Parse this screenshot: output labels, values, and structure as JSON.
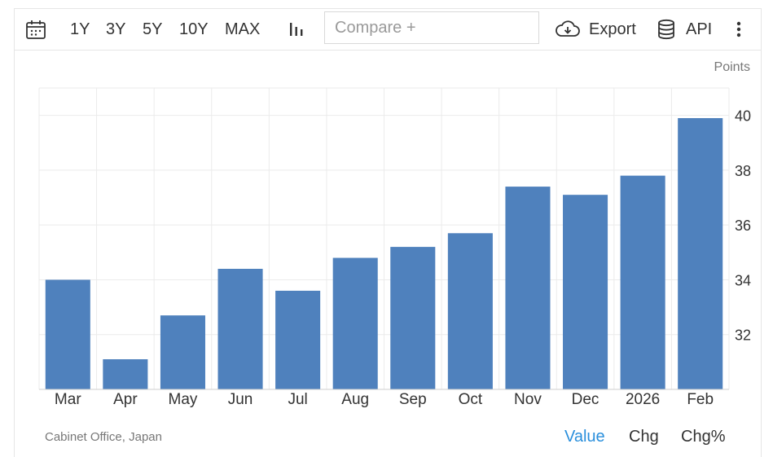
{
  "toolbar": {
    "ranges": [
      "1Y",
      "3Y",
      "5Y",
      "10Y",
      "MAX"
    ],
    "compare_placeholder": "Compare +",
    "export_label": "Export",
    "api_label": "API"
  },
  "units_label": "Points",
  "footer": {
    "source": "Cabinet Office, Japan",
    "tabs": [
      "Value",
      "Chg",
      "Chg%"
    ],
    "active_tab": "Value"
  },
  "colors": {
    "bar": "#4f81bd",
    "grid": "#ebebeb",
    "accent": "#2a8fdc"
  },
  "chart_data": {
    "type": "bar",
    "categories": [
      "Mar",
      "Apr",
      "May",
      "Jun",
      "Jul",
      "Aug",
      "Sep",
      "Oct",
      "Nov",
      "Dec",
      "2026",
      "Feb"
    ],
    "values": [
      34.0,
      31.1,
      32.7,
      34.4,
      33.6,
      34.8,
      35.2,
      35.7,
      37.4,
      37.1,
      37.8,
      39.9
    ],
    "y_ticks": [
      32,
      34,
      36,
      38,
      40
    ],
    "ylim": [
      30,
      41
    ],
    "grid": true
  }
}
